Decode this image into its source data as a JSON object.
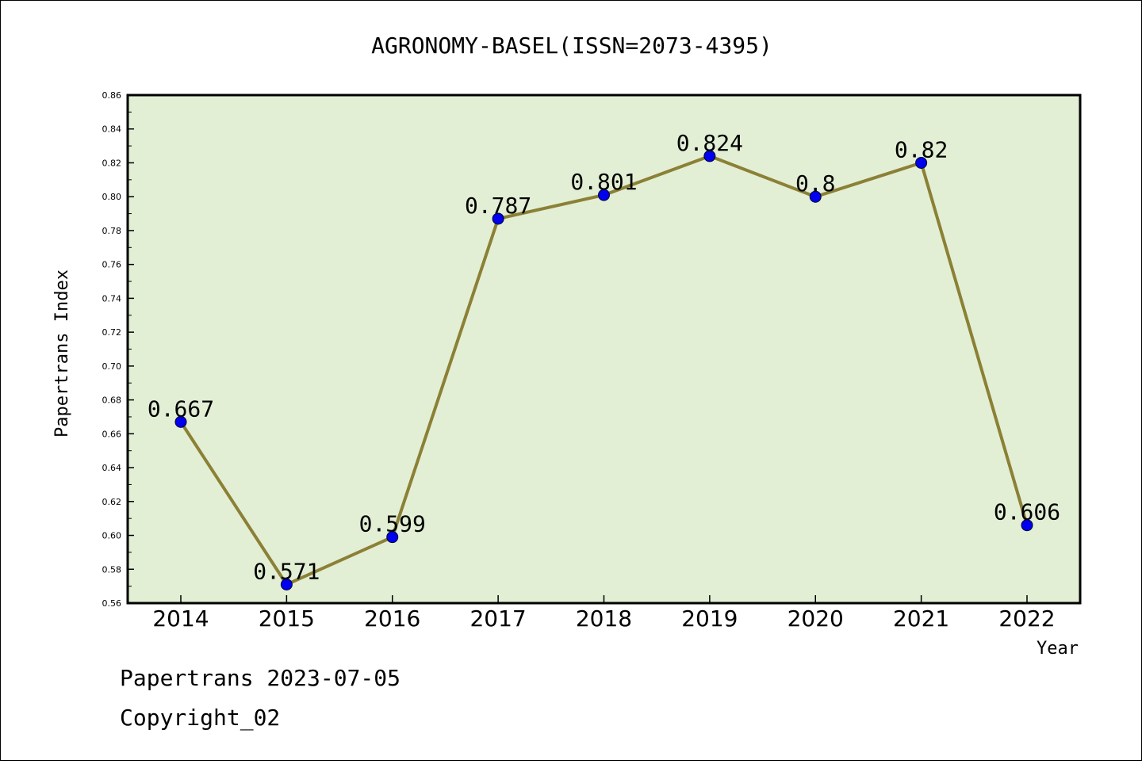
{
  "chart_data": {
    "type": "line",
    "title": "AGRONOMY-BASEL(ISSN=2073-4395)",
    "xlabel": "Year",
    "ylabel": "Papertrans Index",
    "categories": [
      "2014",
      "2015",
      "2016",
      "2017",
      "2018",
      "2019",
      "2020",
      "2021",
      "2022"
    ],
    "values": [
      0.667,
      0.571,
      0.599,
      0.787,
      0.801,
      0.824,
      0.8,
      0.82,
      0.606
    ],
    "data_labels": [
      "0.667",
      "0.571",
      "0.599",
      "0.787",
      "0.801",
      "0.824",
      "0.8",
      "0.82",
      "0.606"
    ],
    "ylim": [
      0.56,
      0.86
    ],
    "yticks": [
      "0.56",
      "0.58",
      "0.60",
      "0.62",
      "0.64",
      "0.66",
      "0.68",
      "0.70",
      "0.72",
      "0.74",
      "0.76",
      "0.78",
      "0.80",
      "0.82",
      "0.84",
      "0.86"
    ],
    "grid": false,
    "colors": {
      "plot_background": "#e2efd5",
      "line": "#8b8035",
      "marker": "#0000ee"
    }
  },
  "footer": {
    "line1": "Papertrans 2023-07-05",
    "line2": "Copyright_02"
  }
}
